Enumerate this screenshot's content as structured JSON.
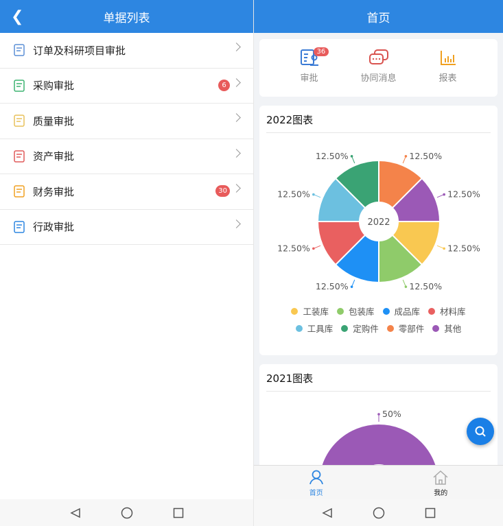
{
  "left": {
    "title": "单据列表",
    "items": [
      {
        "label": "订单及科研项目审批",
        "icon": "document-icon",
        "color": "#5b8fd6"
      },
      {
        "label": "采购审批",
        "icon": "cart-icon",
        "color": "#3cb371",
        "badge": "6"
      },
      {
        "label": "质量审批",
        "icon": "quality-icon",
        "color": "#e8c15a"
      },
      {
        "label": "资产审批",
        "icon": "certificate-icon",
        "color": "#e05a5a"
      },
      {
        "label": "财务审批",
        "icon": "finance-icon",
        "color": "#f0a020",
        "badge": "30"
      },
      {
        "label": "行政审批",
        "icon": "money-hand-icon",
        "color": "#2d86e1"
      }
    ]
  },
  "right": {
    "title": "首页",
    "quick": [
      {
        "label": "审批",
        "badge": "36",
        "icon": "approval-icon"
      },
      {
        "label": "协同消息",
        "icon": "chat-icon"
      },
      {
        "label": "报表",
        "icon": "bar-chart-icon"
      }
    ],
    "tabs": [
      {
        "label": "首页",
        "icon": "user-icon"
      },
      {
        "label": "我的",
        "icon": "home-icon"
      }
    ]
  },
  "chart_data": [
    {
      "type": "pie",
      "title": "2022图表",
      "center_label": "2022",
      "donut": true,
      "categories": [
        "零部件",
        "其他",
        "工装库",
        "包装库",
        "成品库",
        "材料库",
        "工具库",
        "定购件"
      ],
      "values": [
        12.5,
        12.5,
        12.5,
        12.5,
        12.5,
        12.5,
        12.5,
        12.5
      ],
      "labels": [
        "12.50%",
        "12.50%",
        "12.50%",
        "12.50%",
        "12.50%",
        "12.50%",
        "12.50%",
        "12.50%"
      ],
      "colors": [
        "#f4834a",
        "#9b59b6",
        "#f9c851",
        "#8fcb6a",
        "#1e90f5",
        "#e96060",
        "#6cc0e0",
        "#3aa374"
      ],
      "legend": [
        {
          "name": "工装库",
          "color": "#f9c851"
        },
        {
          "name": "包装库",
          "color": "#8fcb6a"
        },
        {
          "name": "成品库",
          "color": "#1e90f5"
        },
        {
          "name": "材料库",
          "color": "#e96060"
        },
        {
          "name": "工具库",
          "color": "#6cc0e0"
        },
        {
          "name": "定购件",
          "color": "#3aa374"
        },
        {
          "name": "零部件",
          "color": "#f4834a"
        },
        {
          "name": "其他",
          "color": "#9b59b6"
        }
      ],
      "legend_position": "bottom"
    },
    {
      "type": "pie",
      "title": "2021图表",
      "donut": true,
      "values": [
        50
      ],
      "labels": [
        "50%"
      ],
      "colors": [
        "#9b59b6"
      ]
    }
  ]
}
